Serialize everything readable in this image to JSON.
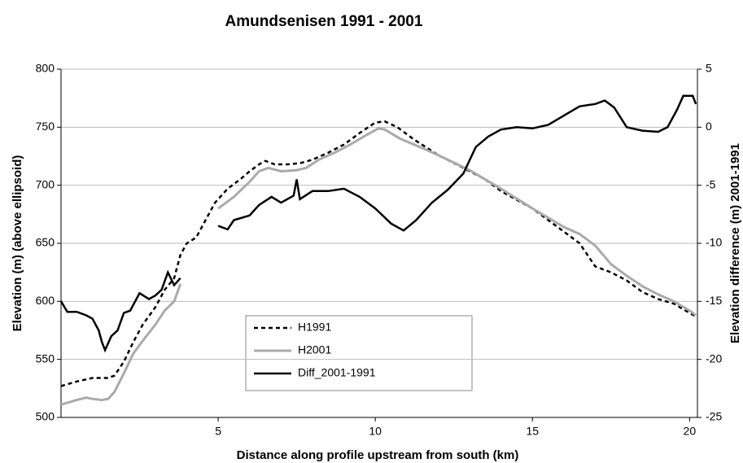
{
  "chart_data": {
    "type": "line",
    "title": "Amundsenisen 1991 - 2001",
    "x_label": "Distance along profile upstream from south (km)",
    "y_label": "Elevation (m)  (above ellipsoid)",
    "y2_label": "Elevation difference (m)  2001-1991",
    "xlim": [
      0,
      20.25
    ],
    "xticks": [
      5,
      10,
      15,
      20
    ],
    "ylim": [
      500,
      800
    ],
    "yticks": [
      500,
      550,
      600,
      650,
      700,
      750,
      800
    ],
    "y2lim": [
      -25,
      5
    ],
    "y2ticks": [
      -25,
      -20,
      -15,
      -10,
      -5,
      0,
      5
    ],
    "grid": true,
    "legend": "center",
    "series": [
      {
        "name": "H1991",
        "color": "#000000",
        "style": "dashed",
        "x": [
          0,
          0.5,
          1,
          1.5,
          1.7,
          2,
          2.3,
          2.6,
          3,
          3.3,
          3.6,
          3.8,
          4,
          4.3,
          4.6,
          4.9,
          5.3,
          5.7,
          6,
          6.3,
          6.5,
          6.8,
          7.2,
          7.6,
          8,
          8.5,
          9,
          9.5,
          10,
          10.3,
          10.7,
          11.2,
          12,
          12.8,
          13.5,
          14,
          15,
          16,
          16.5,
          17,
          17.5,
          18,
          18.5,
          19,
          19.5,
          20,
          20.2
        ],
        "values": [
          527,
          531,
          534,
          534,
          536,
          548,
          565,
          580,
          595,
          610,
          620,
          640,
          650,
          655,
          670,
          685,
          697,
          705,
          712,
          718,
          721,
          718,
          718,
          719,
          722,
          728,
          735,
          745,
          754,
          755,
          750,
          740,
          726,
          715,
          705,
          695,
          680,
          660,
          650,
          630,
          625,
          618,
          608,
          602,
          598,
          590,
          587
        ]
      },
      {
        "name": "H2001",
        "color": "#aaaaaa",
        "style": "solid",
        "x": [
          0,
          0.5,
          0.8,
          1,
          1.3,
          1.5,
          1.7,
          2,
          2.3,
          2.6,
          3,
          3.3,
          3.6,
          3.8,
          4.4,
          5,
          5.5,
          6,
          6.3,
          6.6,
          7,
          7.5,
          7.8,
          8.2,
          8.7,
          9.2,
          9.7,
          10.1,
          10.3,
          10.8,
          11.5,
          12,
          13,
          14,
          15,
          15.5,
          16,
          16.5,
          17,
          17.5,
          18,
          18.5,
          19,
          19.5,
          20,
          20.2
        ],
        "values": [
          511,
          515,
          517,
          516,
          515,
          516,
          522,
          538,
          555,
          566,
          580,
          592,
          600,
          615,
          null,
          680,
          690,
          703,
          712,
          715,
          712,
          713,
          715,
          722,
          728,
          735,
          743,
          749,
          748,
          740,
          732,
          726,
          713,
          697,
          680,
          672,
          664,
          658,
          648,
          632,
          622,
          613,
          606,
          600,
          592,
          588
        ]
      },
      {
        "name": "Diff_2001-1991",
        "color": "#000000",
        "style": "solid",
        "axis": "y2",
        "x": [
          0,
          0.2,
          0.5,
          0.8,
          1,
          1.2,
          1.3,
          1.4,
          1.6,
          1.8,
          2,
          2.2,
          2.5,
          2.8,
          3,
          3.2,
          3.4,
          3.6,
          3.8,
          4.4,
          5,
          5.3,
          5.5,
          6,
          6.3,
          6.7,
          7,
          7.4,
          7.5,
          7.6,
          8,
          8.5,
          9,
          9.5,
          10,
          10.5,
          10.9,
          11.3,
          11.8,
          12.3,
          12.8,
          13.2,
          13.6,
          14,
          14.5,
          15,
          15.5,
          16,
          16.5,
          17,
          17.3,
          17.6,
          18,
          18.5,
          19,
          19.3,
          19.6,
          19.8,
          20.1,
          20.2
        ],
        "values": [
          -15,
          -15.9,
          -15.9,
          -16.2,
          -16.5,
          -17.5,
          -18.5,
          -19.2,
          -18,
          -17.5,
          -16,
          -15.8,
          -14.3,
          -14.8,
          -14.5,
          -14,
          -12.5,
          -13.6,
          -13,
          null,
          -8.5,
          -8.8,
          -8,
          -7.6,
          -6.7,
          -6,
          -6.5,
          -5.9,
          -4.5,
          -6.2,
          -5.5,
          -5.5,
          -5.3,
          -6,
          -7,
          -8.3,
          -8.9,
          -8,
          -6.5,
          -5.4,
          -4,
          -1.7,
          -0.8,
          -0.2,
          0,
          -0.1,
          0.2,
          1,
          1.8,
          2,
          2.3,
          1.7,
          0,
          -0.3,
          -0.4,
          0,
          1.5,
          2.7,
          2.7,
          2
        ]
      }
    ]
  }
}
